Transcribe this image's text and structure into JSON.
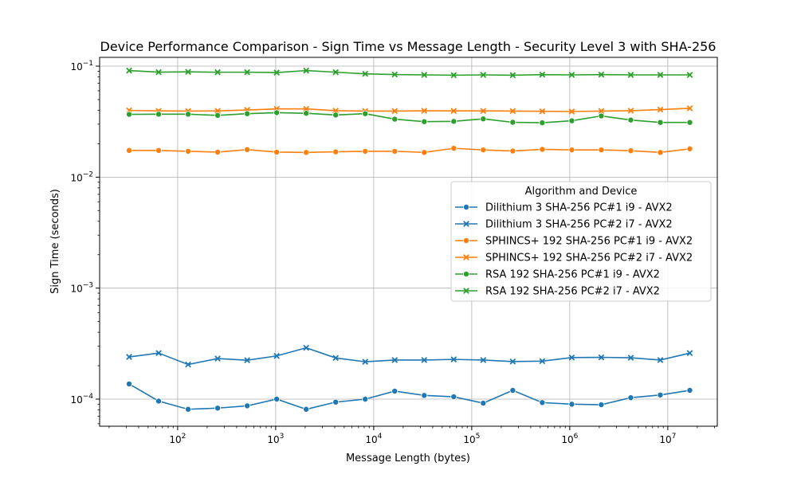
{
  "chart_data": {
    "type": "line",
    "title": "Device Performance Comparison - Sign Time vs Message Length - Security Level 3 with SHA-256",
    "xlabel": "Message Length (bytes)",
    "ylabel": "Sign Time (seconds)",
    "xscale": "log",
    "yscale": "log",
    "xlim": [
      16,
      32000000
    ],
    "ylim": [
      5.7e-05,
      0.12
    ],
    "grid": true,
    "x_ticks": [
      {
        "value": 100,
        "base": "10",
        "exp": "2"
      },
      {
        "value": 1000,
        "base": "10",
        "exp": "3"
      },
      {
        "value": 10000,
        "base": "10",
        "exp": "4"
      },
      {
        "value": 100000,
        "base": "10",
        "exp": "5"
      },
      {
        "value": 1000000,
        "base": "10",
        "exp": "6"
      },
      {
        "value": 10000000,
        "base": "10",
        "exp": "7"
      }
    ],
    "y_ticks": [
      {
        "value": 0.0001,
        "base": "10",
        "exp": "−4"
      },
      {
        "value": 0.001,
        "base": "10",
        "exp": "−3"
      },
      {
        "value": 0.01,
        "base": "10",
        "exp": "−2"
      },
      {
        "value": 0.1,
        "base": "10",
        "exp": "−1"
      }
    ],
    "legend": {
      "title": "Algorithm and Device",
      "position": "center-right"
    },
    "x": [
      32,
      64,
      128,
      256,
      512,
      1024,
      2048,
      4096,
      8192,
      16384,
      32768,
      65536,
      131072,
      262144,
      524288,
      1048576,
      2097152,
      4194304,
      8388608,
      16777216
    ],
    "series": [
      {
        "name": "Dilithium 3 SHA-256 PC#1 i9 - AVX2",
        "color": "#1f77b4",
        "marker": "circle",
        "values": [
          0.000137,
          9.6e-05,
          8.1e-05,
          8.3e-05,
          8.7e-05,
          0.0001,
          8.1e-05,
          9.4e-05,
          0.0001,
          0.000118,
          0.000108,
          0.000105,
          9.2e-05,
          0.00012,
          9.3e-05,
          9e-05,
          8.9e-05,
          0.000103,
          0.000109,
          0.00012
        ]
      },
      {
        "name": "Dilithium 3 SHA-256 PC#2 i7 - AVX2",
        "color": "#1f77b4",
        "marker": "x",
        "values": [
          0.00024,
          0.00026,
          0.000205,
          0.000232,
          0.000224,
          0.000245,
          0.00029,
          0.000235,
          0.000217,
          0.000225,
          0.000225,
          0.000228,
          0.000225,
          0.000218,
          0.00022,
          0.000237,
          0.000238,
          0.000236,
          0.000225,
          0.00026
        ]
      },
      {
        "name": "SPHINCS+ 192 SHA-256 PC#1 i9 - AVX2",
        "color": "#ff7f0e",
        "marker": "circle",
        "values": [
          0.0174,
          0.0174,
          0.0171,
          0.0168,
          0.0177,
          0.0168,
          0.0167,
          0.0169,
          0.0171,
          0.0171,
          0.0167,
          0.0182,
          0.0176,
          0.0172,
          0.0178,
          0.0176,
          0.0176,
          0.0173,
          0.0167,
          0.018
        ]
      },
      {
        "name": "SPHINCS+ 192 SHA-256 PC#2 i7 - AVX2",
        "color": "#ff7f0e",
        "marker": "x",
        "values": [
          0.0399,
          0.0395,
          0.0394,
          0.0395,
          0.0403,
          0.0412,
          0.0412,
          0.0397,
          0.0394,
          0.0394,
          0.0396,
          0.0395,
          0.0395,
          0.0394,
          0.0392,
          0.039,
          0.0394,
          0.0397,
          0.0406,
          0.0417
        ]
      },
      {
        "name": "RSA 192 SHA-256 PC#1 i9 - AVX2",
        "color": "#2ca02c",
        "marker": "circle",
        "values": [
          0.0368,
          0.0369,
          0.0369,
          0.036,
          0.0373,
          0.0381,
          0.0376,
          0.0363,
          0.0373,
          0.0333,
          0.0316,
          0.0318,
          0.0335,
          0.0312,
          0.0309,
          0.0322,
          0.0356,
          0.0327,
          0.0311,
          0.0311
        ]
      },
      {
        "name": "RSA 192 SHA-256 PC#2 i7 - AVX2",
        "color": "#2ca02c",
        "marker": "x",
        "values": [
          0.0912,
          0.0883,
          0.0888,
          0.0882,
          0.0882,
          0.0875,
          0.0912,
          0.0882,
          0.0853,
          0.084,
          0.0834,
          0.0829,
          0.0834,
          0.0829,
          0.0839,
          0.0834,
          0.0839,
          0.0834,
          0.0834,
          0.0834
        ]
      }
    ]
  }
}
